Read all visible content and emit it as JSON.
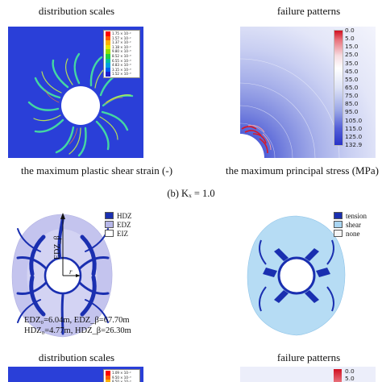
{
  "captions": {
    "top_left_title": "distribution scales",
    "top_right_title": "failure patterns",
    "left_axis_caption": "the maximum plastic shear strain (-)",
    "right_axis_caption": "the maximum principal stress (MPa)",
    "panel_label": "(b) Kₓ = 1.0",
    "bottom_left_title": "distribution scales",
    "bottom_right_title": "failure patterns"
  },
  "strain_legend": {
    "values": [
      "1.75 × 10⁻²",
      "1.57 × 10⁻²",
      "1.37 × 10⁻²",
      "1.18 × 10⁻²",
      "9.80 × 10⁻³",
      "8.52 × 10⁻³",
      "6.55 × 10⁻³",
      "4.83 × 10⁻³",
      "3.15 × 10⁻³",
      "1.52 × 10⁻³"
    ],
    "colors": [
      "#ff0000",
      "#ff5a00",
      "#ffb000",
      "#e8e800",
      "#90e000",
      "#20d040",
      "#00c0a0",
      "#00a0e0",
      "#0060f0",
      "#2020d0"
    ]
  },
  "stress_legend": {
    "values": [
      "0.0",
      "5.0",
      "15.0",
      "25.0",
      "35.0",
      "45.0",
      "55.0",
      "65.0",
      "75.0",
      "85.0",
      "95.0",
      "105.0",
      "115.0",
      "125.0",
      "132.9"
    ]
  },
  "zone_legend": {
    "items": [
      {
        "label": "HDZ",
        "color": "#1a2fb0"
      },
      {
        "label": "EDZ",
        "color": "#b7b7e8"
      },
      {
        "label": "EIZ",
        "color": "#ffffff"
      }
    ]
  },
  "failure_legend": {
    "items": [
      {
        "label": "tension",
        "color": "#1a2fb0"
      },
      {
        "label": "shear",
        "color": "#a9d5f2"
      },
      {
        "label": "none",
        "color": "#f5f5f5"
      }
    ]
  },
  "edz_annotation": {
    "line1": "EDZ₀=6.04m,   EDZ_β=67.70m",
    "line2": "HDZ₀=4.77m,   HDZ_β=26.30m",
    "axis_label": "EDZ_β",
    "r_label": "r"
  },
  "bottom_strain_legend": {
    "values": [
      "1.09 × 10⁻²",
      "9.50 × 10⁻³",
      "8.50 × 10⁻³"
    ],
    "colors": [
      "#ff0000",
      "#ff5a00",
      "#ffb000"
    ]
  },
  "bottom_stress_legend": {
    "values": [
      "0.0",
      "5.0"
    ]
  }
}
